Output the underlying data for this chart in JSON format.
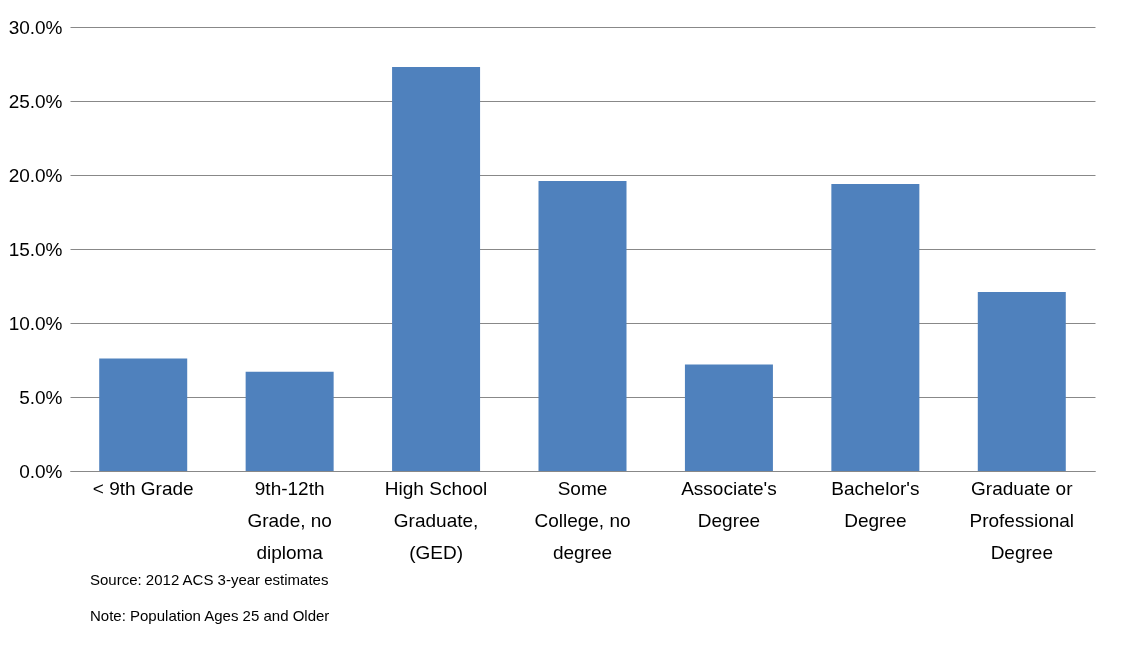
{
  "chart_data": {
    "type": "bar",
    "categories": [
      "< 9th Grade",
      "9th-12th Grade, no diploma",
      "High School Graduate, (GED)",
      "Some College, no degree",
      "Associate's Degree",
      "Bachelor's Degree",
      "Graduate or Professional Degree"
    ],
    "values": [
      7.6,
      6.7,
      27.3,
      19.6,
      7.2,
      19.4,
      12.1
    ],
    "color": "#4f81bd",
    "ylim": [
      0,
      30
    ],
    "yticks": [
      {
        "value": 0,
        "label": "0.0%"
      },
      {
        "value": 5,
        "label": "5.0%"
      },
      {
        "value": 10,
        "label": "10.0%"
      },
      {
        "value": 15,
        "label": "15.0%"
      },
      {
        "value": 20,
        "label": "20.0%"
      },
      {
        "value": 25,
        "label": "25.0%"
      },
      {
        "value": 30,
        "label": "30.0%"
      }
    ],
    "grid": "y",
    "annotations": [
      "Source:  2012 ACS 3-year estimates",
      "Note:  Population Ages 25 and Older"
    ]
  }
}
